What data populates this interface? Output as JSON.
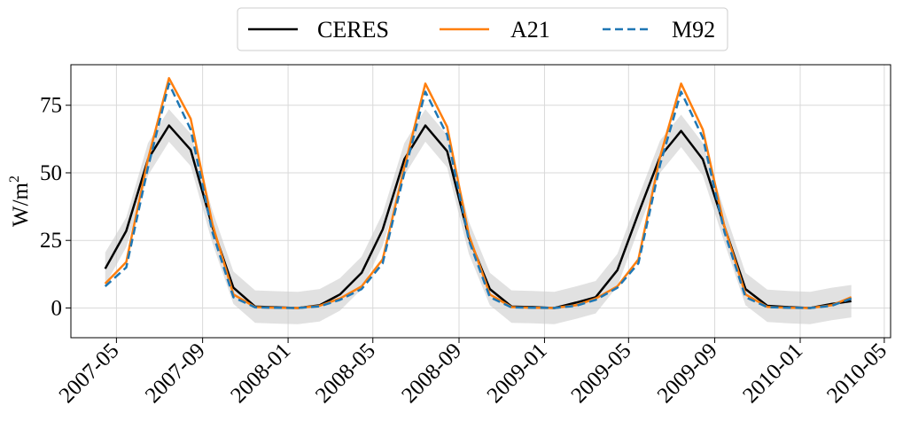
{
  "chart_data": {
    "type": "line",
    "ylabel": "W/m",
    "ylabel_superscript": "2",
    "ylim": [
      -11,
      90
    ],
    "yticks": [
      0,
      25,
      50,
      75
    ],
    "x_range": [
      "2007-02-25",
      "2010-05-10"
    ],
    "xticks": [
      "2007-05",
      "2007-09",
      "2008-01",
      "2008-05",
      "2008-09",
      "2009-01",
      "2009-05",
      "2009-09",
      "2010-01",
      "2010-05"
    ],
    "grid": true,
    "legend_position": "top-center-outside",
    "x": [
      "2007-04-15",
      "2007-05-15",
      "2007-06-15",
      "2007-07-15",
      "2007-08-15",
      "2007-09-15",
      "2007-10-15",
      "2007-11-15",
      "2007-12-15",
      "2008-01-15",
      "2008-02-15",
      "2008-03-15",
      "2008-04-15",
      "2008-05-15",
      "2008-06-15",
      "2008-07-15",
      "2008-08-15",
      "2008-09-15",
      "2008-10-15",
      "2008-11-15",
      "2008-12-15",
      "2009-01-15",
      "2009-02-15",
      "2009-03-15",
      "2009-04-15",
      "2009-05-15",
      "2009-06-15",
      "2009-07-15",
      "2009-08-15",
      "2009-09-15",
      "2009-10-15",
      "2009-11-15",
      "2009-12-15",
      "2010-01-15",
      "2010-02-15",
      "2010-03-15"
    ],
    "series": [
      {
        "name": "CERES",
        "color": "#000000",
        "dash": "solid",
        "values": [
          14.5,
          28.5,
          55,
          67.5,
          58.5,
          30,
          7.5,
          0.5,
          0.2,
          0,
          1,
          5,
          13,
          29,
          55,
          67.5,
          58,
          26,
          7,
          0.5,
          0.3,
          0,
          2,
          4,
          14,
          35,
          56,
          65.5,
          55,
          30,
          7,
          0.8,
          0.3,
          0,
          1.5,
          2.5
        ]
      },
      {
        "name": "A21",
        "color": "#ff7f0e",
        "dash": "solid",
        "values": [
          9,
          17,
          55,
          85,
          70,
          31,
          5,
          0.3,
          0.1,
          0,
          0.8,
          3.5,
          8,
          18,
          52,
          83,
          67,
          27,
          5,
          0.3,
          0.1,
          0,
          1,
          3.5,
          8,
          18,
          56,
          83,
          66,
          30,
          5,
          0.4,
          0.1,
          0,
          1,
          4
        ]
      },
      {
        "name": "M92",
        "color": "#1f77b4",
        "dash": "dashed",
        "values": [
          8,
          15,
          52,
          83,
          66,
          28,
          4,
          0.2,
          0.1,
          0,
          0.6,
          3,
          7,
          16.5,
          50,
          80,
          64,
          25,
          4,
          0.2,
          0.1,
          0,
          0.8,
          3,
          7.5,
          16.5,
          53,
          80,
          63,
          28,
          4,
          0.3,
          0.1,
          0,
          0.8,
          3.5
        ]
      }
    ],
    "band": {
      "color": "#c8c8c8",
      "upper": [
        20.5,
        33.5,
        61,
        73.5,
        64.5,
        36,
        13.5,
        6.5,
        6.2,
        6,
        7,
        11,
        19,
        35,
        61,
        73.5,
        64,
        32,
        13,
        6.5,
        6.3,
        6,
        8,
        10,
        20,
        41,
        62,
        71.5,
        61,
        36,
        13,
        6.8,
        6.3,
        6,
        7.5,
        8.5
      ],
      "lower": [
        8.5,
        22.5,
        49,
        61.5,
        52.5,
        24,
        1.5,
        -5.5,
        -5.8,
        -6,
        -5,
        -1,
        7,
        23,
        49,
        61.5,
        52,
        20,
        1,
        -5.5,
        -5.7,
        -6,
        -4,
        -2,
        8,
        29,
        50,
        59.5,
        49,
        24,
        1,
        -5.2,
        -5.7,
        -6,
        -4.5,
        -3.5
      ]
    }
  }
}
